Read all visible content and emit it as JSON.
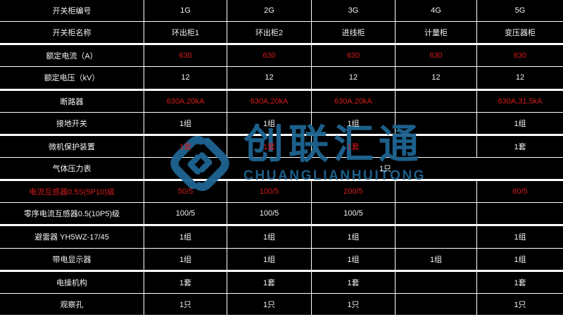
{
  "colors": {
    "background": "#000000",
    "grid_line": "#ffffff",
    "text": "#f2f2f2",
    "accent_red": "#d41c1c",
    "watermark_blue": "#1e6390"
  },
  "watermark": {
    "logo_icon": "interlocked-diamond-logo",
    "name_cn": "创联汇通",
    "name_en": "CHUANGLIANHUITONG"
  },
  "table": {
    "column_ids": [
      "1G",
      "2G",
      "3G",
      "4G",
      "5G"
    ],
    "rows": [
      {
        "label": "开关柜编号",
        "cells": [
          {
            "text": "1G"
          },
          {
            "text": "2G"
          },
          {
            "text": "3G"
          },
          {
            "text": "4G"
          },
          {
            "text": "5G"
          }
        ]
      },
      {
        "label": "开关柜名称",
        "cells": [
          {
            "text": "环出柜1"
          },
          {
            "text": "环出柜2"
          },
          {
            "text": "进线柜"
          },
          {
            "text": "计量柜"
          },
          {
            "text": "变压器柜"
          }
        ]
      },
      {
        "label": "额定电流（A）",
        "cells": [
          {
            "text": "630",
            "red": true
          },
          {
            "text": "630",
            "red": true
          },
          {
            "text": "630",
            "red": true
          },
          {
            "text": "630",
            "red": true
          },
          {
            "text": "630",
            "red": true
          }
        ]
      },
      {
        "label": "额定电压（kV）",
        "cells": [
          {
            "text": "12"
          },
          {
            "text": "12"
          },
          {
            "text": "12"
          },
          {
            "text": "12"
          },
          {
            "text": "12"
          }
        ]
      },
      {
        "label": "断路器",
        "cells": [
          {
            "text": "630A,20kA",
            "red": true
          },
          {
            "text": "630A,20kA",
            "red": true
          },
          {
            "text": "630A,20kA",
            "red": true
          },
          {
            "text": ""
          },
          {
            "text": "630A,31.5kA",
            "red": true
          }
        ]
      },
      {
        "label": "接地开关",
        "cells": [
          {
            "text": "1组"
          },
          {
            "text": "1组"
          },
          {
            "text": "1组"
          },
          {
            "text": ""
          },
          {
            "text": "1组"
          }
        ]
      },
      {
        "label": "微机保护装置",
        "cells": [
          {
            "text": "1套",
            "red": true
          },
          {
            "text": "1套",
            "red": true
          },
          {
            "text": "1套",
            "red": true
          },
          {
            "text": ""
          },
          {
            "text": "1套"
          }
        ]
      },
      {
        "label": "气体压力表",
        "merged": true,
        "merged_text": "1只"
      },
      {
        "label": "电流互感器0.5S(5P10)级",
        "label_red": true,
        "cells": [
          {
            "text": "50/5",
            "red": true
          },
          {
            "text": "100/5",
            "red": true
          },
          {
            "text": "200/5",
            "red": true
          },
          {
            "text": ""
          },
          {
            "text": "60/5",
            "red": true
          }
        ]
      },
      {
        "label": "零序电流互感器0.5(10P5)级",
        "cells": [
          {
            "text": "100/5"
          },
          {
            "text": "100/5"
          },
          {
            "text": "100/5"
          },
          {
            "text": ""
          },
          {
            "text": ""
          }
        ]
      },
      {
        "label": "避雷器 YH5WZ-17/45",
        "cells": [
          {
            "text": "1组"
          },
          {
            "text": "1组"
          },
          {
            "text": "1组"
          },
          {
            "text": ""
          },
          {
            "text": "1组"
          }
        ]
      },
      {
        "label": "带电显示器",
        "cells": [
          {
            "text": "1组"
          },
          {
            "text": "1组"
          },
          {
            "text": "1组"
          },
          {
            "text": "1组"
          },
          {
            "text": "1组"
          }
        ]
      },
      {
        "label": "电操机构",
        "cells": [
          {
            "text": "1套"
          },
          {
            "text": "1套"
          },
          {
            "text": "1套"
          },
          {
            "text": ""
          },
          {
            "text": "1套"
          }
        ]
      },
      {
        "label": "观察孔",
        "cells": [
          {
            "text": "1只"
          },
          {
            "text": "1只"
          },
          {
            "text": "1只"
          },
          {
            "text": ""
          },
          {
            "text": "1只"
          }
        ]
      }
    ]
  }
}
